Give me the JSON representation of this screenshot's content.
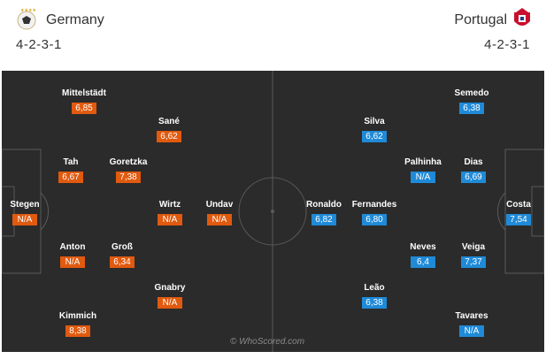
{
  "home": {
    "name": "Germany",
    "formation": "4-2-3-1",
    "crest_icon": "germany-crest-icon",
    "color": "#e05a0f",
    "players": [
      {
        "name": "Mittelstädt",
        "rating": "6,85"
      },
      {
        "name": "Sané",
        "rating": "6,62"
      },
      {
        "name": "Tah",
        "rating": "6,67"
      },
      {
        "name": "Goretzka",
        "rating": "7,38"
      },
      {
        "name": "Stegen",
        "rating": "N/A"
      },
      {
        "name": "Wirtz",
        "rating": "N/A"
      },
      {
        "name": "Undav",
        "rating": "N/A"
      },
      {
        "name": "Anton",
        "rating": "N/A"
      },
      {
        "name": "Groß",
        "rating": "6,34"
      },
      {
        "name": "Gnabry",
        "rating": "N/A"
      },
      {
        "name": "Kimmich",
        "rating": "8,38"
      }
    ]
  },
  "away": {
    "name": "Portugal",
    "formation": "4-2-3-1",
    "crest_icon": "portugal-crest-icon",
    "color": "#1f8ad8",
    "players": [
      {
        "name": "Semedo",
        "rating": "6,38"
      },
      {
        "name": "Silva",
        "rating": "6,62"
      },
      {
        "name": "Palhinha",
        "rating": "N/A"
      },
      {
        "name": "Dias",
        "rating": "6,69"
      },
      {
        "name": "Ronaldo",
        "rating": "6,82"
      },
      {
        "name": "Fernandes",
        "rating": "6,80"
      },
      {
        "name": "Costa",
        "rating": "7,54"
      },
      {
        "name": "Neves",
        "rating": "6,4"
      },
      {
        "name": "Veiga",
        "rating": "7,37"
      },
      {
        "name": "Leão",
        "rating": "6,38"
      },
      {
        "name": "Tavares",
        "rating": "N/A"
      }
    ]
  },
  "watermark": "© WhoScored.com"
}
